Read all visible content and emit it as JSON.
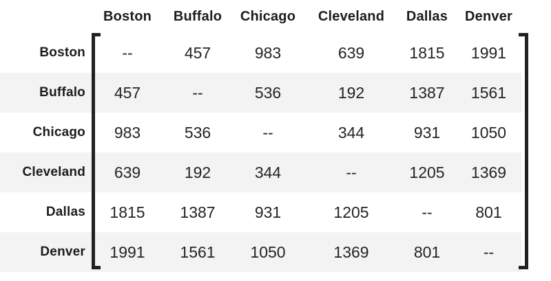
{
  "chart_data": {
    "type": "table",
    "title": "",
    "columns": [
      "Boston",
      "Buffalo",
      "Chicago",
      "Cleveland",
      "Dallas",
      "Denver"
    ],
    "rows": [
      {
        "label": "Boston",
        "values": [
          "--",
          "457",
          "983",
          "639",
          "1815",
          "1991"
        ]
      },
      {
        "label": "Buffalo",
        "values": [
          "457",
          "--",
          "536",
          "192",
          "1387",
          "1561"
        ]
      },
      {
        "label": "Chicago",
        "values": [
          "983",
          "536",
          "--",
          "344",
          "931",
          "1050"
        ]
      },
      {
        "label": "Cleveland",
        "values": [
          "639",
          "192",
          "344",
          "--",
          "1205",
          "1369"
        ]
      },
      {
        "label": "Dallas",
        "values": [
          "1815",
          "1387",
          "931",
          "1205",
          "--",
          "801"
        ]
      },
      {
        "label": "Denver",
        "values": [
          "1991",
          "1561",
          "1050",
          "1369",
          "801",
          "--"
        ]
      }
    ],
    "layout": {
      "striped_rows": true,
      "matrix_brackets": true
    }
  },
  "colors": {
    "row_alt_bg": "#f3f3f3",
    "text": "#1c1c1e",
    "value_text": "#242426",
    "bracket": "#212121",
    "background": "#ffffff"
  }
}
